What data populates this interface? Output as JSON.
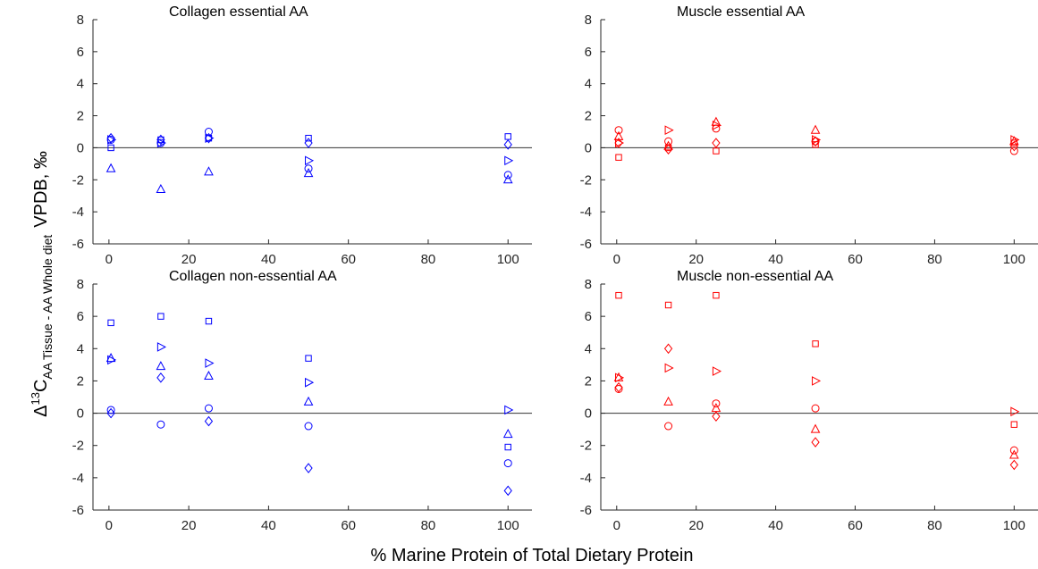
{
  "figure": {
    "xlabel": "% Marine Protein of Total Dietary Protein",
    "ylabel_parts": [
      "Δ",
      "13",
      "C",
      "AA Tissue - AA Whole diet",
      "VPDB, ‰"
    ]
  },
  "chart_data": [
    {
      "type": "scatter",
      "title": "Collagen essential AA",
      "color": "#0000ff",
      "xlim": [
        -4,
        106
      ],
      "ylim": [
        -6,
        8
      ],
      "xticks": [
        0,
        20,
        40,
        60,
        80,
        100
      ],
      "yticks": [
        -6,
        -4,
        -2,
        0,
        2,
        4,
        6,
        8
      ],
      "series": [
        {
          "marker": "square",
          "x": [
            0.5,
            13,
            25,
            50,
            100
          ],
          "y": [
            0.0,
            0.5,
            0.6,
            0.6,
            0.7
          ]
        },
        {
          "marker": "circle",
          "x": [
            0.5,
            13,
            25,
            50,
            100
          ],
          "y": [
            0.5,
            0.3,
            1.0,
            -1.3,
            -1.7
          ]
        },
        {
          "marker": "triangle-up",
          "x": [
            0.5,
            13,
            25,
            50,
            100
          ],
          "y": [
            -1.3,
            -2.6,
            -1.5,
            -1.6,
            -2.0
          ]
        },
        {
          "marker": "triangle-right",
          "x": [
            0.5,
            13,
            25,
            50,
            100
          ],
          "y": [
            0.5,
            0.3,
            0.6,
            -0.8,
            -0.8
          ]
        },
        {
          "marker": "diamond",
          "x": [
            0.5,
            13,
            25,
            50,
            100
          ],
          "y": [
            0.6,
            0.5,
            0.6,
            0.3,
            0.2
          ]
        }
      ]
    },
    {
      "type": "scatter",
      "title": "Muscle essential AA",
      "color": "#ff0000",
      "xlim": [
        -4,
        106
      ],
      "ylim": [
        -6,
        8
      ],
      "xticks": [
        0,
        20,
        40,
        60,
        80,
        100
      ],
      "yticks": [
        -6,
        -4,
        -2,
        0,
        2,
        4,
        6,
        8
      ],
      "series": [
        {
          "marker": "square",
          "x": [
            0.5,
            13,
            25,
            50,
            100
          ],
          "y": [
            -0.6,
            0.0,
            -0.2,
            0.2,
            0.3
          ]
        },
        {
          "marker": "circle",
          "x": [
            0.5,
            13,
            25,
            50,
            100
          ],
          "y": [
            1.1,
            0.4,
            1.2,
            0.4,
            -0.2
          ]
        },
        {
          "marker": "triangle-up",
          "x": [
            0.5,
            13,
            25,
            50,
            100
          ],
          "y": [
            0.7,
            0.1,
            1.6,
            1.1,
            0.4
          ]
        },
        {
          "marker": "triangle-right",
          "x": [
            0.5,
            13,
            25,
            50,
            100
          ],
          "y": [
            0.3,
            1.1,
            1.4,
            0.5,
            0.5
          ]
        },
        {
          "marker": "diamond",
          "x": [
            0.5,
            13,
            25,
            50,
            100
          ],
          "y": [
            0.3,
            -0.1,
            0.3,
            0.4,
            0.1
          ]
        }
      ]
    },
    {
      "type": "scatter",
      "title": "Collagen non-essential AA",
      "color": "#0000ff",
      "xlim": [
        -4,
        106
      ],
      "ylim": [
        -6,
        8
      ],
      "xticks": [
        0,
        20,
        40,
        60,
        80,
        100
      ],
      "yticks": [
        -6,
        -4,
        -2,
        0,
        2,
        4,
        6,
        8
      ],
      "series": [
        {
          "marker": "square",
          "x": [
            0.5,
            13,
            25,
            50,
            100
          ],
          "y": [
            5.6,
            6.0,
            5.7,
            3.4,
            -2.1
          ]
        },
        {
          "marker": "circle",
          "x": [
            0.5,
            13,
            25,
            50,
            100
          ],
          "y": [
            0.2,
            -0.7,
            0.3,
            -0.8,
            -3.1
          ]
        },
        {
          "marker": "triangle-up",
          "x": [
            0.5,
            13,
            25,
            50,
            100
          ],
          "y": [
            3.4,
            2.9,
            2.3,
            0.7,
            -1.3
          ]
        },
        {
          "marker": "triangle-right",
          "x": [
            0.5,
            13,
            25,
            50,
            100
          ],
          "y": [
            3.3,
            4.1,
            3.1,
            1.9,
            0.2
          ]
        },
        {
          "marker": "diamond",
          "x": [
            0.5,
            13,
            25,
            50,
            100
          ],
          "y": [
            0.0,
            2.2,
            -0.5,
            -3.4,
            -4.8
          ]
        }
      ]
    },
    {
      "type": "scatter",
      "title": "Muscle non-essential AA",
      "color": "#ff0000",
      "xlim": [
        -4,
        106
      ],
      "ylim": [
        -6,
        8
      ],
      "xticks": [
        0,
        20,
        40,
        60,
        80,
        100
      ],
      "yticks": [
        -6,
        -4,
        -2,
        0,
        2,
        4,
        6,
        8
      ],
      "series": [
        {
          "marker": "square",
          "x": [
            0.5,
            13,
            25,
            50,
            100
          ],
          "y": [
            7.3,
            6.7,
            7.3,
            4.3,
            -0.7
          ]
        },
        {
          "marker": "circle",
          "x": [
            0.5,
            13,
            25,
            50,
            100
          ],
          "y": [
            1.5,
            -0.8,
            0.6,
            0.3,
            -2.3
          ]
        },
        {
          "marker": "triangle-up",
          "x": [
            0.5,
            13,
            25,
            50,
            100
          ],
          "y": [
            2.2,
            0.7,
            0.3,
            -1.0,
            -2.6
          ]
        },
        {
          "marker": "triangle-right",
          "x": [
            0.5,
            13,
            25,
            50,
            100
          ],
          "y": [
            2.2,
            2.8,
            2.6,
            2.0,
            0.1
          ]
        },
        {
          "marker": "diamond",
          "x": [
            0.5,
            13,
            25,
            50,
            100
          ],
          "y": [
            1.6,
            4.0,
            -0.2,
            -1.8,
            -3.2
          ]
        }
      ]
    }
  ]
}
